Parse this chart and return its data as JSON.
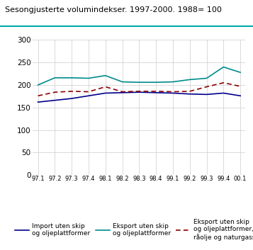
{
  "title": "Sesongjusterte volumindekser. 1997-2000. 1988= 100",
  "x_labels": [
    "97.1",
    "97.2",
    "97.3",
    "97.4",
    "98.1",
    "98.2",
    "98.3",
    "98.4",
    "99.1",
    "99.2",
    "99.3",
    "99.4",
    "00.1"
  ],
  "import_uten_skip": [
    162,
    166,
    170,
    176,
    182,
    183,
    184,
    183,
    182,
    180,
    179,
    182,
    176
  ],
  "eksport_uten_skip": [
    200,
    216,
    216,
    215,
    221,
    207,
    206,
    206,
    207,
    212,
    215,
    240,
    228
  ],
  "eksport_uten_skip_olje": [
    176,
    184,
    186,
    185,
    196,
    185,
    186,
    186,
    185,
    186,
    196,
    205,
    197
  ],
  "line1_color": "#00008B",
  "line2_color": "#008B8B",
  "line3_color": "#8B0000",
  "ylim": [
    0,
    300
  ],
  "yticks": [
    0,
    50,
    100,
    150,
    200,
    250,
    300
  ],
  "teal_bar_color": "#00AAAA",
  "title_line_color": "#00AAAA",
  "grid_color": "#cccccc",
  "legend": [
    "Import uten skip\nog oljeplattformer",
    "Eksport uten skip\nog oljeplattformer",
    "Eksport uten skip\nog oljeplattformer,\nråolje og naturgass"
  ]
}
